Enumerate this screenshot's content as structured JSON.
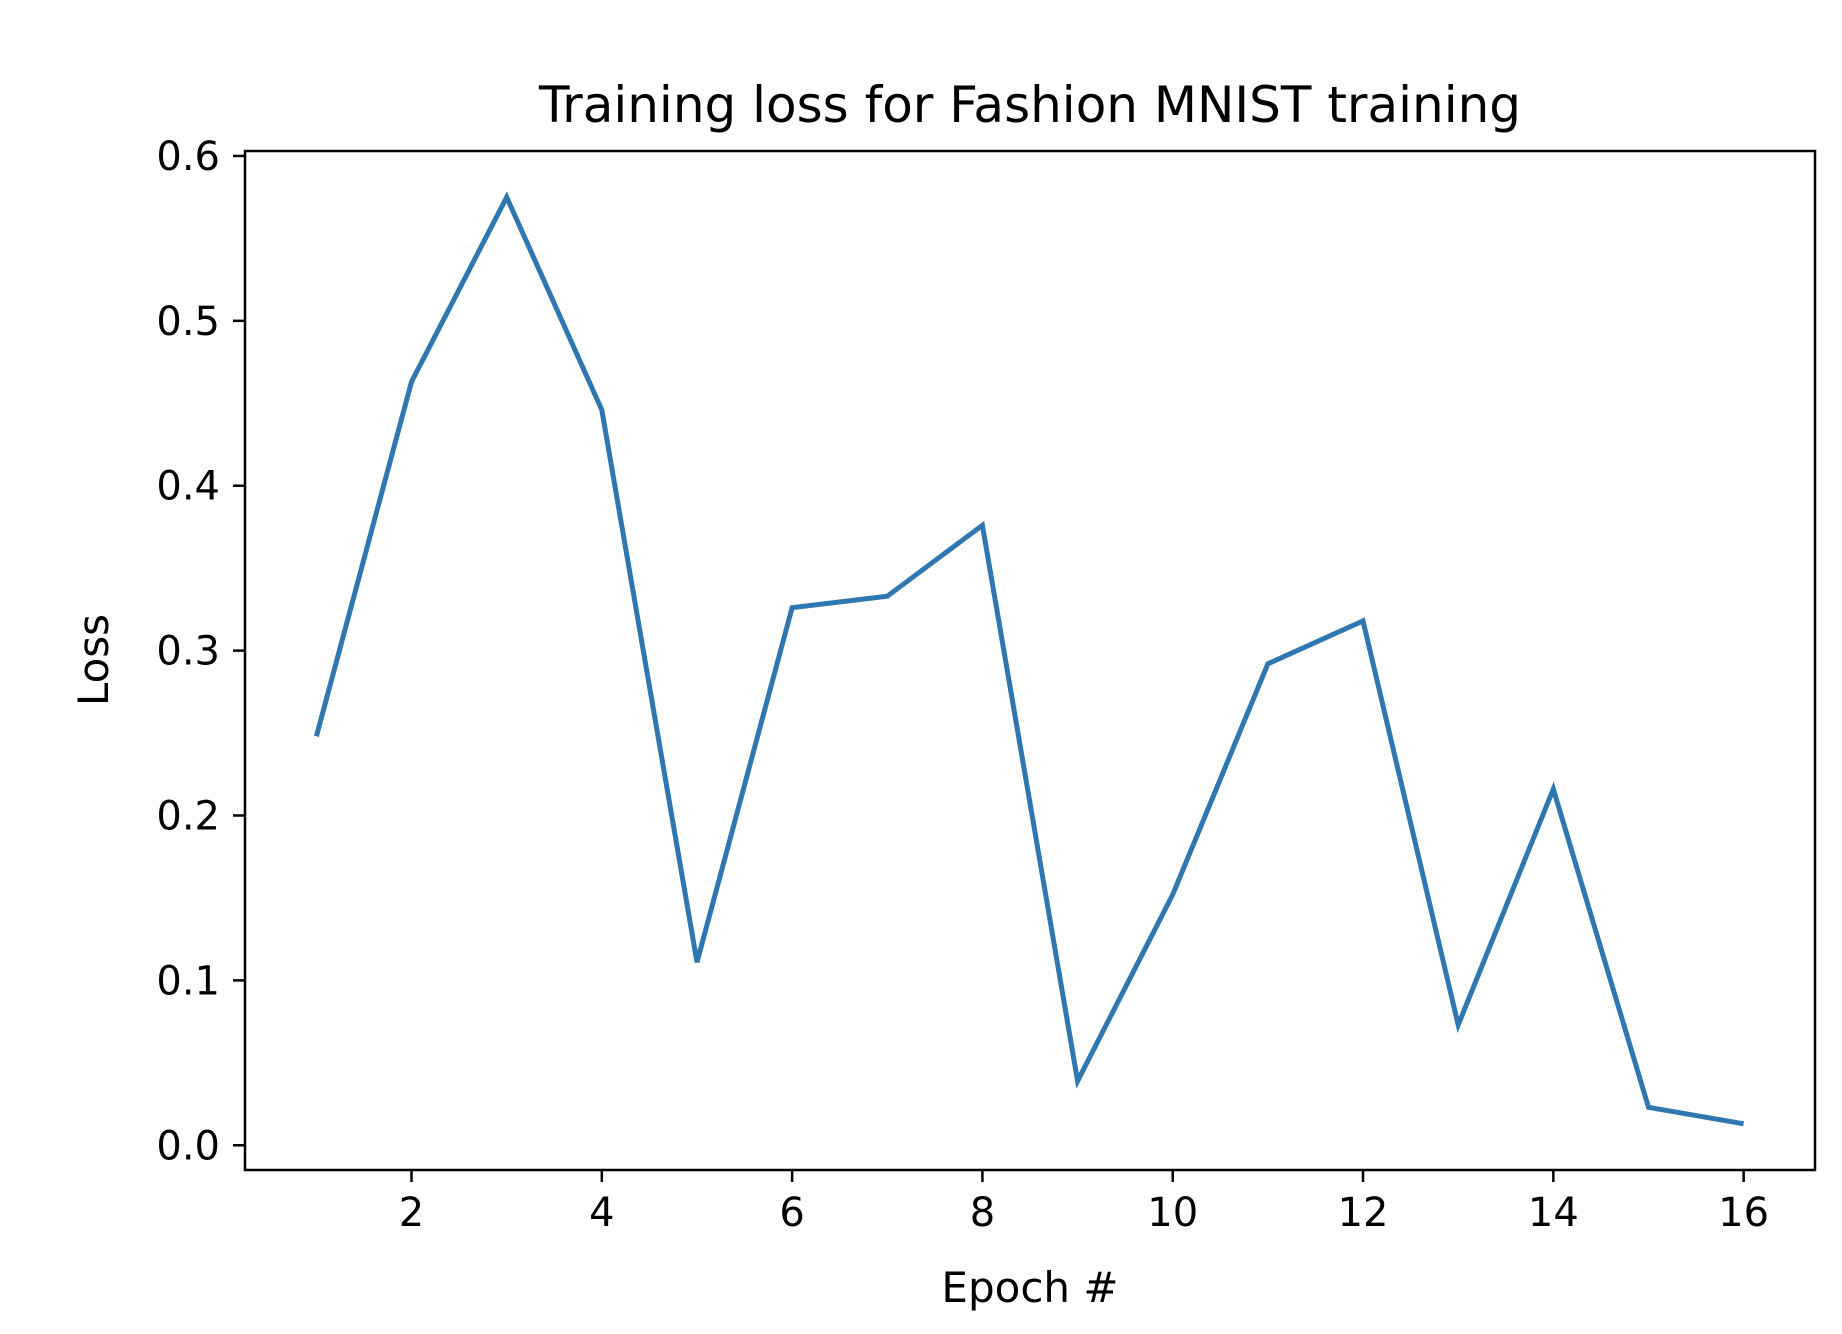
{
  "chart_data": {
    "type": "line",
    "title": "Training loss for Fashion MNIST training",
    "xlabel": "Epoch #",
    "ylabel": "Loss",
    "xlim": [
      0.25,
      16.75
    ],
    "ylim": [
      -0.015,
      0.603
    ],
    "xticks": [
      2,
      4,
      6,
      8,
      10,
      12,
      14,
      16
    ],
    "xtick_labels": [
      "2",
      "4",
      "6",
      "8",
      "10",
      "12",
      "14",
      "16"
    ],
    "yticks": [
      0.0,
      0.1,
      0.2,
      0.3,
      0.4,
      0.5,
      0.6
    ],
    "ytick_labels": [
      "0.0",
      "0.1",
      "0.2",
      "0.3",
      "0.4",
      "0.5",
      "0.6"
    ],
    "grid": false,
    "line_color": "#2e77b0",
    "series": [
      {
        "x": [
          1,
          2,
          3,
          4,
          5,
          6,
          7,
          8,
          9,
          10,
          11,
          12,
          13,
          14,
          15,
          16
        ],
        "values": [
          0.248,
          0.463,
          0.575,
          0.446,
          0.111,
          0.326,
          0.333,
          0.376,
          0.039,
          0.152,
          0.292,
          0.318,
          0.073,
          0.216,
          0.023,
          0.013
        ]
      }
    ]
  }
}
